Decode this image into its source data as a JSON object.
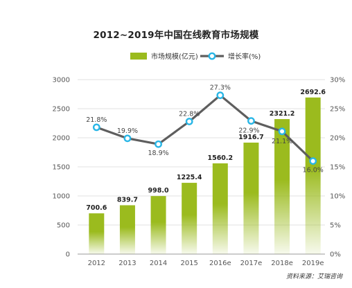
{
  "chart_data": {
    "type": "bar+line",
    "title": "2012~2019年中国在线教育市场规模",
    "categories": [
      "2012",
      "2013",
      "2014",
      "2015",
      "2016e",
      "2017e",
      "2018e",
      "2019e"
    ],
    "series": [
      {
        "name": "市场规模(亿元)",
        "type": "bar",
        "axis": "left",
        "values": [
          700.6,
          839.7,
          998.0,
          1225.4,
          1560.2,
          1916.7,
          2321.2,
          2692.6
        ],
        "labels": [
          "700.6",
          "839.7",
          "998.0",
          "1225.4",
          "1560.2",
          "1916.7",
          "2321.2",
          "2692.6"
        ],
        "color": "#9bbb1e"
      },
      {
        "name": "增长率(%)",
        "type": "line",
        "axis": "right",
        "values": [
          21.8,
          19.9,
          18.9,
          22.8,
          27.3,
          22.9,
          21.1,
          16.0
        ],
        "labels": [
          "21.8%",
          "19.9%",
          "18.9%",
          "22.8%",
          "27.3%",
          "22.9%",
          "21.1%",
          "16.0%"
        ],
        "line_color": "#5e5e5e",
        "marker_color": "#29b6e6"
      }
    ],
    "y_left": {
      "ylim": [
        0,
        3000
      ],
      "ticks": [
        "0",
        "500",
        "1000",
        "1500",
        "2000",
        "2500",
        "3000"
      ]
    },
    "y_right": {
      "ylim": [
        0,
        30
      ],
      "ticks": [
        "0%",
        "5%",
        "10%",
        "15%",
        "20%",
        "25%",
        "30%"
      ]
    },
    "grid": true,
    "legend_position": "top-center",
    "source": "资料来源：艾瑞咨询"
  }
}
